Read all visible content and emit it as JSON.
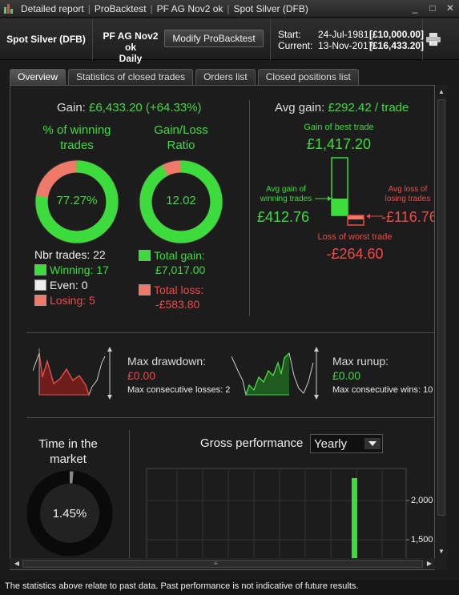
{
  "window": {
    "crumbs": [
      "Detailed report",
      "ProBacktest",
      "PF AG Nov2 ok",
      "Spot Silver (DFB)"
    ],
    "controls": [
      "_",
      "□",
      "✕"
    ]
  },
  "header": {
    "instrument": "Spot Silver (DFB)",
    "strategy_line1": "PF AG Nov2 ok",
    "strategy_line2": "Daily",
    "modify_label": "Modify ProBacktest",
    "start_label": "Start:",
    "start_date": "24-Jul-1981",
    "start_amount": "[£10,000.00]",
    "current_label": "Current:",
    "current_date": "13-Nov-2017",
    "current_amount": "[£16,433.20]"
  },
  "tabs": [
    {
      "label": "Overview",
      "active": true
    },
    {
      "label": "Statistics of closed trades",
      "active": false
    },
    {
      "label": "Orders list",
      "active": false
    },
    {
      "label": "Closed positions list",
      "active": false
    }
  ],
  "overview": {
    "gain_label": "Gain:",
    "gain_value": "£6,433.20 (+64.33%)",
    "winning_title_1": "% of winning",
    "winning_title_2": "trades",
    "winning_pct_text": "77.27%",
    "winning_fraction": 0.7727,
    "ratio_title_1": "Gain/Loss",
    "ratio_title_2": "Ratio",
    "ratio_text": "12.02",
    "ratio_win_fraction": 0.9232,
    "nbr_trades": "Nbr trades: 22",
    "winning": "Winning: 17",
    "even": "Even: 0",
    "losing": "Losing: 5",
    "total_gain_label": "Total gain:",
    "total_gain": "£7,017.00",
    "total_loss_label": "Total loss:",
    "total_loss": "-£583.80",
    "avg_gain_label": "Avg gain:",
    "avg_gain": "£292.42 / trade",
    "best_label": "Gain of best trade",
    "best_value": "£1,417.20",
    "avg_win_label_1": "Avg gain of",
    "avg_win_label_2": "winning trades",
    "avg_win_value": "£412.76",
    "avg_loss_label_1": "Avg loss of",
    "avg_loss_label_2": "losing trades",
    "avg_loss_value": "-£116.76",
    "worst_label": "Loss of worst trade",
    "worst_value": "-£264.60",
    "max_drawdown_label": "Max drawdown:",
    "max_drawdown": "£0.00",
    "max_consec_losses": "Max consecutive losses: 2",
    "max_runup_label": "Max runup:",
    "max_runup": "£0.00",
    "max_consec_wins": "Max consecutive wins: 10",
    "time_market_1": "Time in the",
    "time_market_2": "market",
    "time_market_text": "1.45%",
    "time_market_fraction": 0.0145,
    "gross_label": "Gross performance",
    "period_select": "Yearly",
    "y_ticks": [
      "2,000",
      "1,500"
    ]
  },
  "colors": {
    "green": "#3ddc3d",
    "red": "#ef4a4a",
    "salmon": "#f07a6a"
  },
  "footer": "The statistics above relate to past data. Past performance is not indicative of future results."
}
